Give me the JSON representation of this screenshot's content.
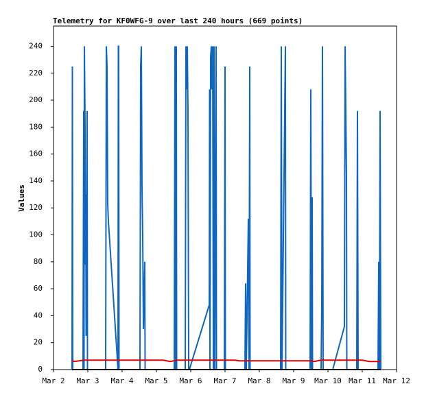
{
  "chart_data": {
    "type": "line",
    "title": "Telemetry for KF0WFG-9 over last 240 hours (669 points)",
    "y_label": "Values",
    "xlim": [
      2,
      12
    ],
    "xticks": [
      {
        "value": 2,
        "label": "Mar 2"
      },
      {
        "value": 3,
        "label": "Mar 3"
      },
      {
        "value": 4,
        "label": "Mar 4"
      },
      {
        "value": 5,
        "label": "Mar 5"
      },
      {
        "value": 6,
        "label": "Mar 6"
      },
      {
        "value": 7,
        "label": "Mar 7"
      },
      {
        "value": 8,
        "label": "Mar 8"
      },
      {
        "value": 9,
        "label": "Mar 9"
      },
      {
        "value": 10,
        "label": "Mar 10"
      },
      {
        "value": 11,
        "label": "Mar 11"
      },
      {
        "value": 12,
        "label": "Mar 12"
      }
    ],
    "ylim": [
      0,
      255
    ],
    "yticks": [
      0,
      20,
      40,
      60,
      80,
      100,
      120,
      140,
      160,
      180,
      200,
      220,
      240
    ],
    "series": [
      {
        "color": "#0f66c0",
        "x": [
          2.54,
          2.55,
          2.56,
          2.86,
          2.88,
          2.89,
          2.9,
          2.92,
          2.93,
          2.94,
          2.95,
          2.98,
          2.99,
          3.52,
          3.54,
          3.56,
          3.58,
          3.6,
          3.88,
          3.89,
          3.9,
          3.91,
          4.52,
          4.54,
          4.56,
          4.58,
          4.6,
          4.62,
          4.66,
          4.67,
          5.52,
          5.54,
          5.56,
          5.58,
          5.59,
          5.84,
          5.86,
          5.88,
          5.9,
          5.92,
          5.94,
          5.96,
          6.54,
          6.55,
          6.56,
          6.58,
          6.6,
          6.62,
          6.64,
          6.66,
          6.68,
          6.7,
          6.74,
          6.75,
          6.98,
          7,
          7.01,
          7.58,
          7.6,
          7.62,
          7.68,
          7.7,
          7.72,
          7.73,
          8.62,
          8.64,
          8.66,
          8.76,
          8.77,
          9.48,
          9.5,
          9.52,
          9.54,
          9.55,
          9.8,
          9.82,
          9.84,
          9.86,
          10.14,
          10.48,
          10.5,
          10.52,
          10.54,
          10.55,
          10.84,
          10.86,
          10.88,
          11.46,
          11.48,
          11.5,
          11.52,
          11.54
        ],
        "values": [
          0,
          225,
          0,
          0,
          192,
          0,
          240,
          180,
          78,
          130,
          25,
          192,
          0,
          0,
          240,
          225,
          123,
          110,
          0,
          240,
          240,
          0,
          0,
          225,
          240,
          134,
          100,
          30,
          80,
          0,
          0,
          240,
          0,
          240,
          0,
          0,
          240,
          208,
          240,
          192,
          0,
          0,
          48,
          208,
          0,
          232,
          240,
          208,
          240,
          0,
          240,
          0,
          240,
          0,
          0,
          225,
          0,
          0,
          64,
          0,
          112,
          0,
          225,
          0,
          0,
          240,
          0,
          240,
          0,
          0,
          208,
          0,
          128,
          0,
          0,
          48,
          240,
          0,
          0,
          32,
          240,
          192,
          145,
          0,
          0,
          192,
          0,
          0,
          80,
          0,
          192,
          0
        ]
      },
      {
        "color": "#e00000",
        "x": [
          2.54,
          2.6,
          2.9,
          5.2,
          5.4,
          5.6,
          7.3,
          7.4,
          9.5,
          9.6,
          9.8,
          11,
          11.2,
          11.54
        ],
        "values": [
          7,
          6,
          7,
          7,
          6,
          7,
          7,
          6.5,
          6.5,
          6,
          7,
          7,
          6,
          6
        ]
      },
      {
        "color": "#000000",
        "x": [
          2.54,
          11.54
        ],
        "values": [
          0,
          0
        ]
      }
    ]
  }
}
